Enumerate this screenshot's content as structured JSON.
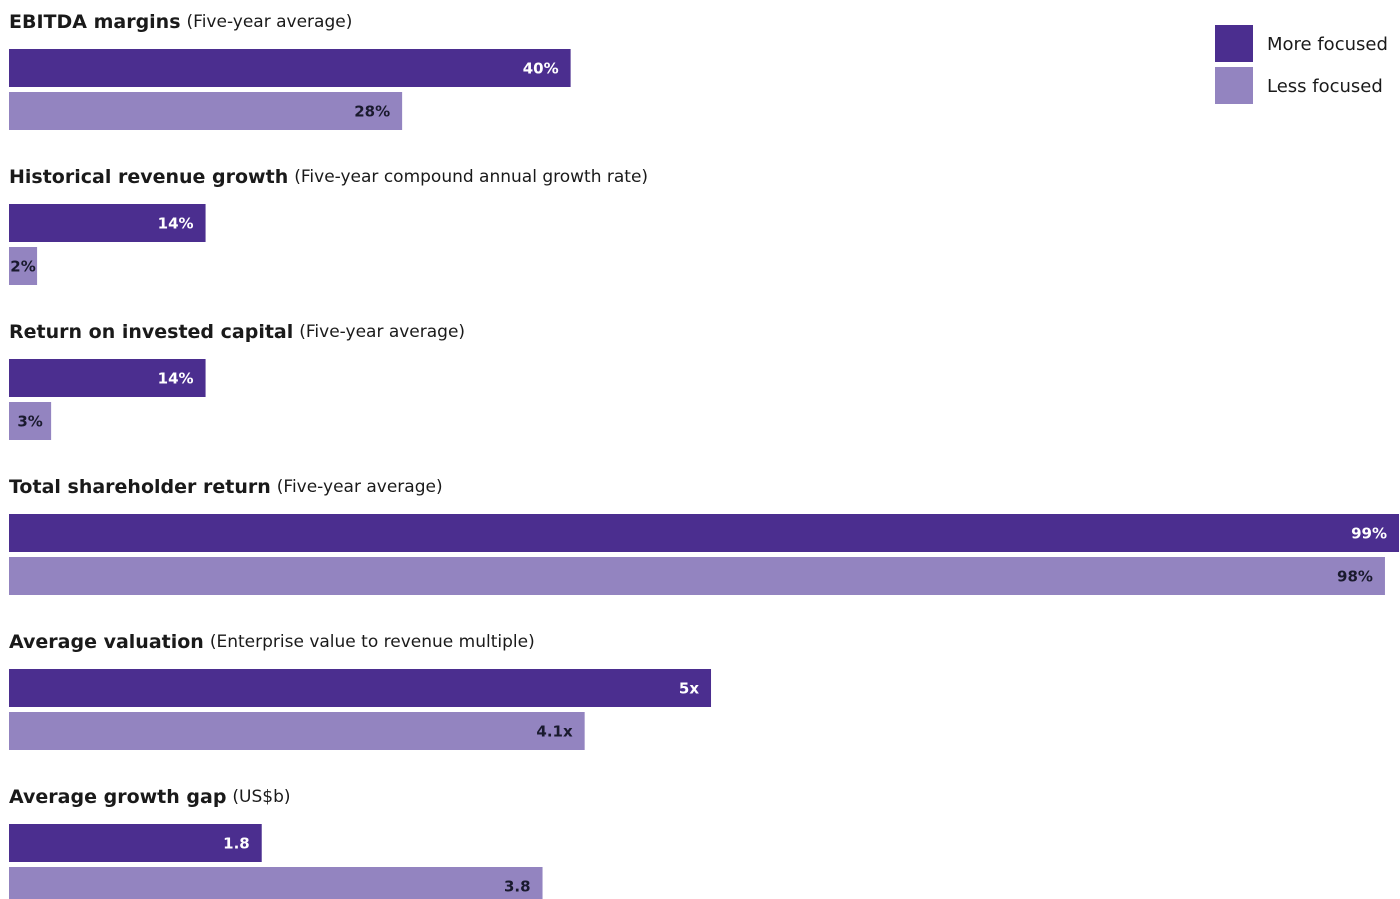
{
  "legend": {
    "series": [
      {
        "name": "More focused",
        "color": "#4b2e8f"
      },
      {
        "name": "Less focused",
        "color": "#9384c0"
      }
    ]
  },
  "chart_data": [
    {
      "type": "bar",
      "title": "EBITDA margins",
      "subtitle": "(Five-year average)",
      "values": [
        40,
        28
      ],
      "value_labels": [
        "40%",
        "28%"
      ],
      "xlim": [
        0,
        99
      ]
    },
    {
      "type": "bar",
      "title": "Historical revenue growth",
      "subtitle": "(Five-year compound annual growth rate)",
      "values": [
        14,
        2
      ],
      "value_labels": [
        "14%",
        "2%"
      ],
      "xlim": [
        0,
        99
      ]
    },
    {
      "type": "bar",
      "title": "Return on invested capital",
      "subtitle": "(Five-year average)",
      "values": [
        14,
        3
      ],
      "value_labels": [
        "14%",
        "3%"
      ],
      "xlim": [
        0,
        99
      ]
    },
    {
      "type": "bar",
      "title": "Total shareholder return",
      "subtitle": "(Five-year average)",
      "values": [
        99,
        98
      ],
      "value_labels": [
        "99%",
        "98%"
      ],
      "xlim": [
        0,
        99
      ]
    },
    {
      "type": "bar",
      "title": "Average valuation",
      "subtitle": "(Enterprise value to revenue multiple)",
      "values": [
        5,
        4.1
      ],
      "value_labels": [
        "5x",
        "4.1x"
      ],
      "xlim": [
        0,
        9.9
      ]
    },
    {
      "type": "bar",
      "title": "Average growth gap",
      "subtitle": "(US$b)",
      "values": [
        1.8,
        3.8
      ],
      "xlim": [
        0,
        9.9
      ]
    }
  ]
}
